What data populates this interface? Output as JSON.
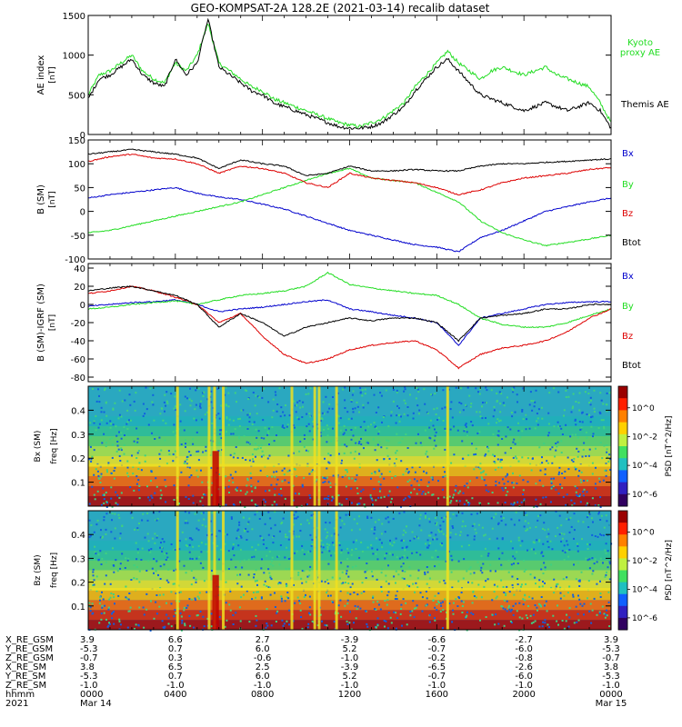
{
  "title": "GEO-KOMPSAT-2A 128.2E (2021-03-14) recalib dataset",
  "colors": {
    "black": "#000000",
    "green": "#22dd22",
    "blue": "#0000cc",
    "red": "#dd0000",
    "kyoto": "#22dd22"
  },
  "chart_data": [
    {
      "type": "line",
      "panel": "ae",
      "ylabel": "AE index",
      "yunit": "[nT]",
      "ylim": [
        0,
        1500
      ],
      "yticks": [
        0,
        500,
        1000,
        1500
      ],
      "legend": [
        {
          "label": "Kyoto\nproxy AE",
          "color": "kyoto"
        },
        {
          "label": "Themis AE",
          "color": "black"
        }
      ],
      "series": [
        {
          "name": "Kyoto proxy AE",
          "color": "kyoto",
          "x": [
            0,
            0.5,
            1,
            1.5,
            2,
            2.5,
            3,
            3.5,
            4,
            4.5,
            5,
            5.5,
            6,
            6.5,
            7,
            7.5,
            8,
            8.5,
            9,
            9.5,
            10,
            10.5,
            11,
            11.5,
            12,
            12.5,
            13,
            13.5,
            14,
            14.5,
            15,
            15.5,
            16,
            16.5,
            17,
            17.5,
            18,
            18.5,
            19,
            19.5,
            20,
            20.5,
            21,
            21.5,
            22,
            22.5,
            23,
            23.5,
            24
          ],
          "values": [
            500,
            750,
            800,
            900,
            1000,
            800,
            700,
            650,
            900,
            800,
            1000,
            1400,
            900,
            800,
            700,
            600,
            550,
            450,
            400,
            350,
            300,
            250,
            200,
            150,
            120,
            100,
            150,
            200,
            300,
            400,
            600,
            750,
            900,
            1050,
            900,
            800,
            700,
            800,
            850,
            800,
            750,
            800,
            850,
            750,
            700,
            650,
            600,
            400,
            150
          ]
        },
        {
          "name": "Themis AE",
          "color": "black",
          "x": [
            0,
            0.5,
            1,
            1.5,
            2,
            2.5,
            3,
            3.5,
            4,
            4.5,
            5,
            5.5,
            6,
            6.5,
            7,
            7.5,
            8,
            8.5,
            9,
            9.5,
            10,
            10.5,
            11,
            11.5,
            12,
            12.5,
            13,
            13.5,
            14,
            14.5,
            15,
            15.5,
            16,
            16.5,
            17,
            17.5,
            18,
            18.5,
            19,
            19.5,
            20,
            20.5,
            21,
            21.5,
            22,
            22.5,
            23,
            23.5,
            24
          ],
          "values": [
            450,
            700,
            750,
            850,
            950,
            750,
            650,
            600,
            950,
            750,
            900,
            1450,
            850,
            750,
            650,
            550,
            500,
            400,
            350,
            300,
            250,
            200,
            150,
            100,
            80,
            80,
            100,
            150,
            250,
            350,
            550,
            700,
            850,
            950,
            800,
            650,
            500,
            450,
            400,
            350,
            300,
            350,
            400,
            350,
            300,
            350,
            400,
            300,
            80
          ]
        }
      ]
    },
    {
      "type": "line",
      "panel": "bsm",
      "ylabel": "B (SM)",
      "yunit": "[nT]",
      "ylim": [
        -100,
        150
      ],
      "yticks": [
        -100,
        -50,
        0,
        50,
        100,
        150
      ],
      "legend": [
        {
          "label": "Bx",
          "color": "blue"
        },
        {
          "label": "By",
          "color": "green"
        },
        {
          "label": "Bz",
          "color": "red"
        },
        {
          "label": "Btot",
          "color": "black"
        }
      ],
      "series": [
        {
          "name": "Bx",
          "color": "blue",
          "x": [
            0,
            1,
            2,
            3,
            4,
            5,
            6,
            7,
            8,
            9,
            10,
            11,
            12,
            13,
            14,
            15,
            16,
            17,
            18,
            19,
            20,
            21,
            22,
            23,
            24
          ],
          "values": [
            28,
            35,
            40,
            45,
            50,
            38,
            30,
            25,
            15,
            5,
            -10,
            -25,
            -40,
            -50,
            -60,
            -70,
            -75,
            -85,
            -55,
            -40,
            -20,
            0,
            10,
            20,
            28
          ]
        },
        {
          "name": "By",
          "color": "green",
          "x": [
            0,
            1,
            2,
            3,
            4,
            5,
            6,
            7,
            8,
            9,
            10,
            11,
            12,
            13,
            14,
            15,
            16,
            17,
            18,
            19,
            20,
            21,
            22,
            23,
            24
          ],
          "values": [
            -45,
            -40,
            -30,
            -20,
            -10,
            0,
            10,
            20,
            35,
            50,
            65,
            80,
            90,
            70,
            65,
            60,
            40,
            20,
            -20,
            -45,
            -60,
            -72,
            -65,
            -58,
            -50
          ]
        },
        {
          "name": "Bz",
          "color": "red",
          "x": [
            0,
            1,
            2,
            3,
            4,
            5,
            6,
            7,
            8,
            9,
            10,
            11,
            12,
            13,
            14,
            15,
            16,
            17,
            18,
            19,
            20,
            21,
            22,
            23,
            24
          ],
          "values": [
            105,
            115,
            120,
            112,
            110,
            100,
            80,
            95,
            90,
            80,
            60,
            50,
            80,
            70,
            65,
            60,
            50,
            35,
            45,
            60,
            70,
            75,
            80,
            88,
            92
          ]
        },
        {
          "name": "Btot",
          "color": "black",
          "x": [
            0,
            1,
            2,
            3,
            4,
            5,
            6,
            7,
            8,
            9,
            10,
            11,
            12,
            13,
            14,
            15,
            16,
            17,
            18,
            19,
            20,
            21,
            22,
            23,
            24
          ],
          "values": [
            120,
            125,
            130,
            125,
            120,
            112,
            90,
            108,
            100,
            95,
            75,
            80,
            95,
            85,
            85,
            88,
            85,
            85,
            95,
            100,
            100,
            103,
            105,
            108,
            110
          ]
        }
      ]
    },
    {
      "type": "line",
      "panel": "bsm_igrf",
      "ylabel": "B (SM)-IGRF (SM)",
      "yunit": "[nT]",
      "ylim": [
        -85,
        45
      ],
      "yticks": [
        -80,
        -60,
        -40,
        -20,
        0,
        20,
        40
      ],
      "legend": [
        {
          "label": "Bx",
          "color": "blue"
        },
        {
          "label": "By",
          "color": "green"
        },
        {
          "label": "Bz",
          "color": "red"
        },
        {
          "label": "Btot",
          "color": "black"
        }
      ],
      "series": [
        {
          "name": "Bx",
          "color": "blue",
          "x": [
            0,
            1,
            2,
            3,
            4,
            5,
            6,
            7,
            8,
            9,
            10,
            11,
            12,
            13,
            14,
            15,
            16,
            17,
            18,
            19,
            20,
            21,
            22,
            23,
            24
          ],
          "values": [
            -2,
            0,
            2,
            3,
            5,
            0,
            -8,
            -5,
            -3,
            0,
            3,
            5,
            -5,
            -8,
            -12,
            -15,
            -20,
            -45,
            -15,
            -10,
            -5,
            0,
            2,
            3,
            3
          ]
        },
        {
          "name": "By",
          "color": "green",
          "x": [
            0,
            1,
            2,
            3,
            4,
            5,
            6,
            7,
            8,
            9,
            10,
            11,
            12,
            13,
            14,
            15,
            16,
            17,
            18,
            19,
            20,
            21,
            22,
            23,
            24
          ],
          "values": [
            -5,
            -3,
            0,
            2,
            4,
            0,
            5,
            10,
            12,
            15,
            20,
            35,
            22,
            18,
            15,
            12,
            10,
            0,
            -15,
            -22,
            -25,
            -25,
            -20,
            -12,
            -5
          ]
        },
        {
          "name": "Bz",
          "color": "red",
          "x": [
            0,
            1,
            2,
            3,
            4,
            5,
            6,
            7,
            8,
            9,
            10,
            11,
            12,
            13,
            14,
            15,
            16,
            17,
            18,
            19,
            20,
            21,
            22,
            23,
            24
          ],
          "values": [
            12,
            15,
            20,
            15,
            8,
            0,
            -20,
            -10,
            -35,
            -55,
            -65,
            -60,
            -50,
            -45,
            -42,
            -40,
            -50,
            -70,
            -55,
            -48,
            -45,
            -40,
            -30,
            -15,
            -5
          ]
        },
        {
          "name": "Btot",
          "color": "black",
          "x": [
            0,
            1,
            2,
            3,
            4,
            5,
            6,
            7,
            8,
            9,
            10,
            11,
            12,
            13,
            14,
            15,
            16,
            17,
            18,
            19,
            20,
            21,
            22,
            23,
            24
          ],
          "values": [
            15,
            18,
            20,
            15,
            10,
            0,
            -25,
            -10,
            -20,
            -35,
            -25,
            -20,
            -15,
            -18,
            -15,
            -15,
            -20,
            -40,
            -15,
            -12,
            -10,
            -5,
            -5,
            0,
            0
          ]
        }
      ]
    },
    {
      "type": "heatmap",
      "panel": "spec_bx",
      "ylabel": "Bx (SM)",
      "ylabel2": "freq [Hz]",
      "ylim": [
        0,
        0.5
      ],
      "yticks": [
        0.1,
        0.2,
        0.3,
        0.4
      ],
      "colorbar_label": "PSD [nT^2/Hz]",
      "colorbar_ticks": [
        "10^0",
        "10^-2",
        "10^-4",
        "10^-6"
      ]
    },
    {
      "type": "heatmap",
      "panel": "spec_bz",
      "ylabel": "Bz (SM)",
      "ylabel2": "freq [Hz]",
      "ylim": [
        0,
        0.5
      ],
      "yticks": [
        0.1,
        0.2,
        0.3,
        0.4
      ],
      "colorbar_label": "PSD [nT^2/Hz]",
      "colorbar_ticks": [
        "10^0",
        "10^-2",
        "10^-4",
        "10^-6"
      ]
    }
  ],
  "ephemeris": {
    "row_labels": [
      "X_RE_GSM",
      "Y_RE_GSM",
      "Z_RE_GSM",
      "X_RE_SM",
      "Y_RE_SM",
      "Z_RE_SM",
      "hhmm",
      "2021"
    ],
    "columns": [
      [
        "3.9",
        "-5.3",
        "-0.7",
        "3.8",
        "-5.3",
        "-1.0",
        "0000",
        "Mar 14"
      ],
      [
        "6.6",
        "0.7",
        "0.3",
        "6.5",
        "0.7",
        "-1.0",
        "0400",
        ""
      ],
      [
        "2.7",
        "6.0",
        "-0.6",
        "2.5",
        "6.0",
        "-1.0",
        "0800",
        ""
      ],
      [
        "-3.9",
        "5.2",
        "-1.0",
        "-3.9",
        "5.2",
        "-1.0",
        "1200",
        ""
      ],
      [
        "-6.6",
        "-0.7",
        "-0.2",
        "-6.5",
        "-0.7",
        "-1.0",
        "1600",
        ""
      ],
      [
        "-2.7",
        "-6.0",
        "-0.8",
        "-2.6",
        "-6.0",
        "-1.0",
        "2000",
        ""
      ],
      [
        "3.9",
        "-5.3",
        "-0.7",
        "3.8",
        "-5.3",
        "-1.0",
        "0000",
        "Mar 15"
      ]
    ]
  }
}
